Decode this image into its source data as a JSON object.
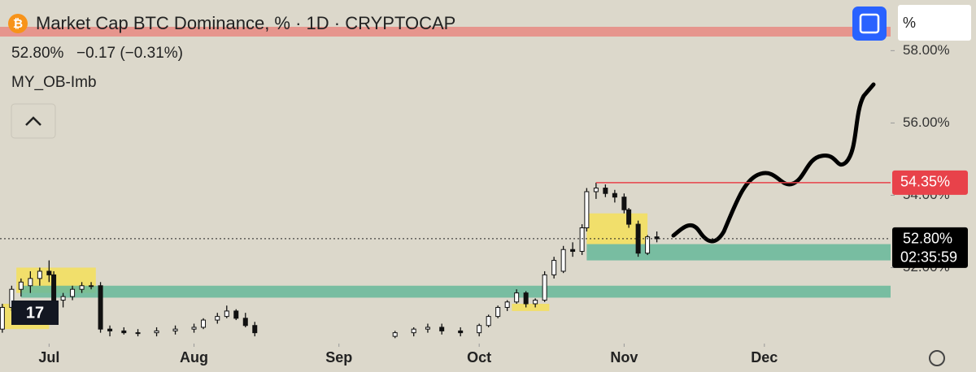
{
  "chart_data": {
    "type": "candlestick",
    "title": "Market Cap BTC Dominance, % · 1D · CRYPTOCAP",
    "last": "52.80%",
    "change": "−0.17 (−0.31%)",
    "indicator": "MY_OB-Imb",
    "scale_mode": "%",
    "countdown": "02:35:59",
    "x": [
      -10,
      -8,
      -6,
      -4,
      -2,
      0,
      1,
      3,
      5,
      7,
      9,
      11,
      13,
      16,
      19,
      23,
      27,
      31,
      33,
      36,
      38,
      40,
      42,
      44,
      74,
      78,
      81,
      84,
      88,
      92,
      94,
      96,
      98,
      100,
      102,
      104,
      106,
      108,
      110,
      112,
      114,
      115,
      117,
      119,
      121,
      123,
      124,
      126,
      128,
      130
    ],
    "open": [
      50.3,
      50.9,
      51.4,
      51.5,
      51.7,
      51.9,
      51.8,
      51.1,
      51.2,
      51.4,
      51.5,
      51.5,
      50.3,
      50.25,
      50.2,
      50.2,
      50.25,
      50.3,
      50.35,
      50.55,
      50.65,
      50.8,
      50.6,
      50.4,
      50.1,
      50.2,
      50.3,
      50.35,
      50.25,
      50.2,
      50.4,
      50.65,
      50.9,
      51.05,
      51.3,
      51.0,
      51.1,
      51.8,
      51.9,
      52.5,
      52.45,
      53.1,
      54.1,
      54.2,
      54.05,
      53.95,
      53.6,
      53.2,
      52.4,
      52.85
    ],
    "high": [
      51.0,
      51.5,
      51.7,
      51.9,
      52.0,
      52.2,
      51.9,
      51.3,
      51.5,
      51.6,
      51.6,
      51.6,
      50.4,
      50.35,
      50.3,
      50.35,
      50.4,
      50.45,
      50.6,
      50.75,
      50.95,
      50.85,
      50.75,
      50.5,
      50.25,
      50.35,
      50.45,
      50.45,
      50.35,
      50.45,
      50.7,
      50.95,
      51.1,
      51.4,
      51.35,
      51.15,
      51.9,
      52.3,
      52.6,
      52.7,
      53.2,
      54.2,
      54.35,
      54.3,
      54.15,
      54.05,
      53.65,
      53.3,
      52.9,
      53.0
    ],
    "low": [
      50.2,
      50.8,
      51.2,
      51.3,
      51.5,
      51.6,
      50.9,
      50.9,
      51.1,
      51.3,
      51.4,
      50.2,
      50.1,
      50.15,
      50.1,
      50.1,
      50.15,
      50.2,
      50.3,
      50.45,
      50.6,
      50.55,
      50.35,
      50.1,
      50.05,
      50.1,
      50.2,
      50.15,
      50.1,
      50.1,
      50.35,
      50.6,
      50.8,
      51.0,
      50.9,
      50.9,
      51.05,
      51.7,
      51.85,
      52.3,
      52.35,
      53.0,
      53.9,
      53.95,
      53.8,
      53.5,
      53.1,
      52.3,
      52.35,
      52.7
    ],
    "close": [
      50.9,
      51.4,
      51.6,
      51.7,
      51.9,
      51.8,
      51.0,
      51.2,
      51.4,
      51.5,
      51.5,
      50.3,
      50.25,
      50.2,
      50.2,
      50.25,
      50.3,
      50.35,
      50.55,
      50.65,
      50.8,
      50.6,
      50.4,
      50.2,
      50.2,
      50.3,
      50.35,
      50.25,
      50.2,
      50.4,
      50.65,
      50.9,
      51.05,
      51.3,
      51.0,
      51.1,
      51.8,
      52.2,
      52.5,
      52.45,
      53.1,
      54.1,
      54.2,
      54.05,
      53.95,
      53.6,
      53.2,
      52.4,
      52.85,
      52.8
    ],
    "zones": [
      {
        "color": "#f5e15a",
        "low": 50.3,
        "high": 51.0,
        "from": -10,
        "to": 0
      },
      {
        "color": "#f5e15a",
        "low": 51.3,
        "high": 52.0,
        "from": -7,
        "to": 10
      },
      {
        "color": "#66b89a",
        "low": 51.17,
        "high": 51.5,
        "from": -6,
        "to": 180
      },
      {
        "color": "#f5e15a",
        "low": 50.8,
        "high": 51.0,
        "from": 99,
        "to": 107
      },
      {
        "color": "#f5e15a",
        "low": 52.65,
        "high": 53.5,
        "from": 115,
        "to": 128
      },
      {
        "color": "#66b89a",
        "low": 52.2,
        "high": 52.65,
        "from": 115,
        "to": 180
      }
    ],
    "level": {
      "value": 54.35,
      "label": "54.35%",
      "color": "#e8424a"
    },
    "ylim": [
      49.9,
      59.4
    ],
    "yticks": [
      {
        "value": 58,
        "label": "58.00%"
      },
      {
        "value": 56,
        "label": "56.00%"
      },
      {
        "value": 54,
        "label": "54.00%"
      },
      {
        "value": 52,
        "label": "52.00%"
      }
    ],
    "xlim": [
      -10.5,
      180
    ],
    "xticks": [
      {
        "value": 0,
        "label": "Jul"
      },
      {
        "value": 31,
        "label": "Aug"
      },
      {
        "value": 62,
        "label": "Sep"
      },
      {
        "value": 92,
        "label": "Oct"
      },
      {
        "value": 123,
        "label": "Nov"
      },
      {
        "value": 153,
        "label": "Dec"
      }
    ]
  }
}
